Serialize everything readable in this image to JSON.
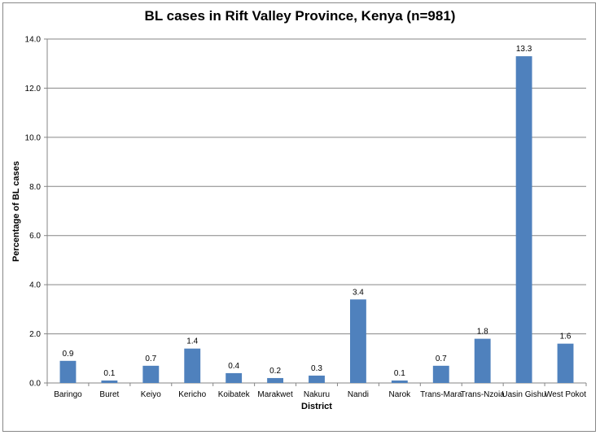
{
  "chart_data": {
    "type": "bar",
    "title": "BL cases in Rift Valley Province, Kenya (n=981)",
    "xlabel": "District",
    "ylabel": "Percentage of BL cases",
    "ylim": [
      0,
      14
    ],
    "yticks": [
      "0.0",
      "2.0",
      "4.0",
      "6.0",
      "8.0",
      "10.0",
      "12.0",
      "14.0"
    ],
    "grid": true,
    "legend": "none",
    "bar_color": "#4F81BD",
    "categories": [
      "Baringo",
      "Buret",
      "Keiyo",
      "Kericho",
      "Koibatek",
      "Marakwet",
      "Nakuru",
      "Nandi",
      "Narok",
      "Trans-Mara",
      "Trans-Nzoia",
      "Uasin Gishu",
      "West Pokot"
    ],
    "values": [
      0.9,
      0.1,
      0.7,
      1.4,
      0.4,
      0.2,
      0.3,
      3.4,
      0.1,
      0.7,
      1.8,
      13.3,
      1.6
    ],
    "data_labels": [
      "0.9",
      "0.1",
      "0.7",
      "1.4",
      "0.4",
      "0.2",
      "0.3",
      "3.4",
      "0.1",
      "0.7",
      "1.8",
      "13.3",
      "1.6"
    ]
  }
}
